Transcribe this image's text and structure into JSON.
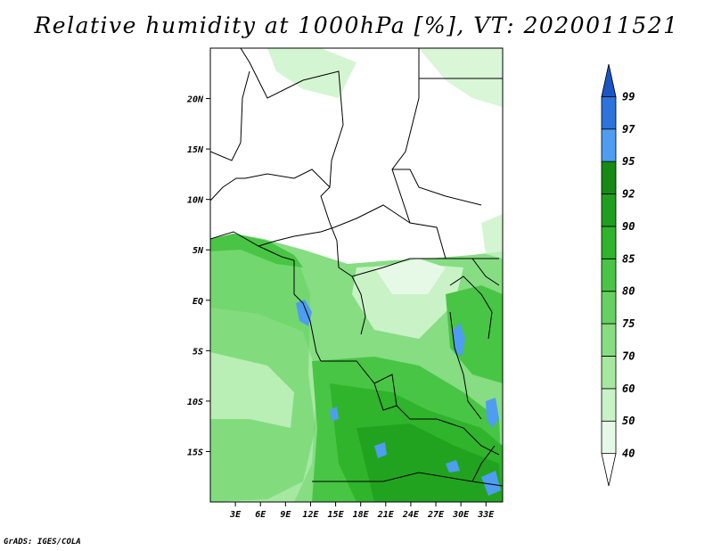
{
  "title": "Relative humidity at 1000hPa [%], VT: 2020011521",
  "footer": "GrADS: IGES/COLA",
  "map": {
    "lon_range": [
      0,
      35
    ],
    "lat_range": [
      -20,
      25
    ],
    "lon_ticks": [
      {
        "value": 3,
        "label": "3E"
      },
      {
        "value": 6,
        "label": "6E"
      },
      {
        "value": 9,
        "label": "9E"
      },
      {
        "value": 12,
        "label": "12E"
      },
      {
        "value": 15,
        "label": "15E"
      },
      {
        "value": 18,
        "label": "18E"
      },
      {
        "value": 21,
        "label": "21E"
      },
      {
        "value": 24,
        "label": "24E"
      },
      {
        "value": 27,
        "label": "27E"
      },
      {
        "value": 30,
        "label": "30E"
      },
      {
        "value": 33,
        "label": "33E"
      }
    ],
    "lat_ticks": [
      {
        "value": 20,
        "label": "20N"
      },
      {
        "value": 15,
        "label": "15N"
      },
      {
        "value": 10,
        "label": "10N"
      },
      {
        "value": 5,
        "label": "5N"
      },
      {
        "value": 0,
        "label": "EQ"
      },
      {
        "value": -5,
        "label": "5S"
      },
      {
        "value": -10,
        "label": "10S"
      },
      {
        "value": -15,
        "label": "15S"
      }
    ]
  },
  "colorbar": {
    "levels": [
      "40",
      "50",
      "60",
      "70",
      "75",
      "80",
      "85",
      "90",
      "92",
      "95",
      "97",
      "99"
    ],
    "colors": [
      "#ffffff",
      "#e6f9e6",
      "#c9f2c6",
      "#a6e8a2",
      "#86dd82",
      "#64d160",
      "#48c544",
      "#2fb42b",
      "#1f9f1d",
      "#168a14",
      "#4e9df0",
      "#2a74db",
      "#1a55c2"
    ]
  }
}
